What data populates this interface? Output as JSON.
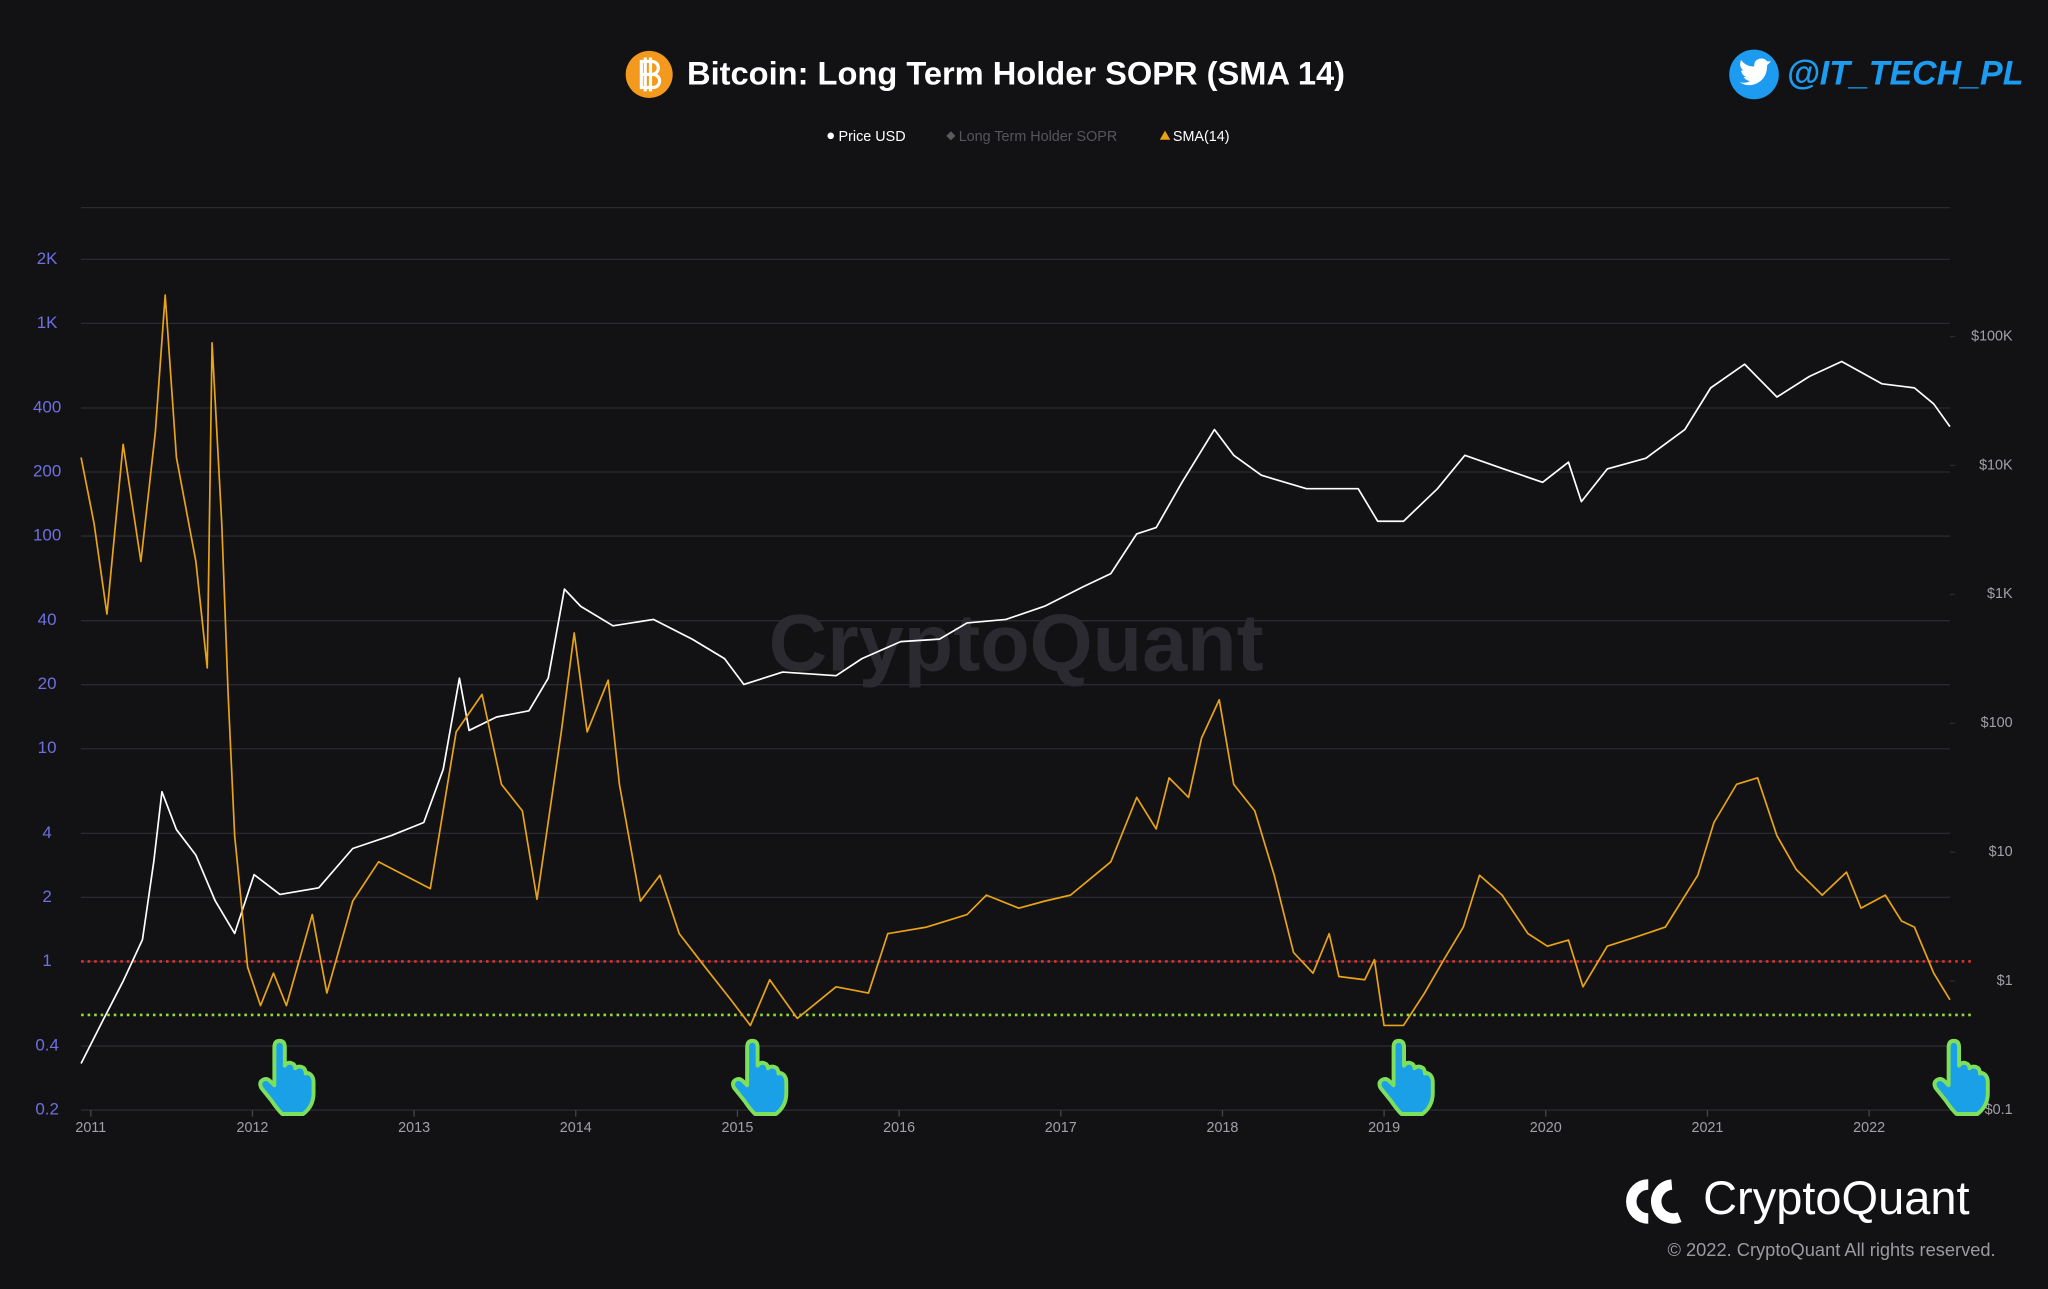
{
  "chart_data": {
    "type": "line",
    "title": "Bitcoin: Long Term Holder SOPR (SMA 14)",
    "handle": "@IT_TECH_PL",
    "watermark": "CryptoQuant",
    "brand": "CryptoQuant",
    "copyright": "© 2022. CryptoQuant All rights reserved.",
    "log_scale": true,
    "grid": true,
    "legend": "top",
    "xlim": [
      2010.94,
      2022.5
    ],
    "xticks": [
      2011,
      2012,
      2013,
      2014,
      2015,
      2016,
      2017,
      2018,
      2019,
      2020,
      2021,
      2022
    ],
    "ylim": [
      0.2,
      3500
    ],
    "yticks": [
      0.2,
      0.4,
      1,
      2,
      4,
      10,
      20,
      40,
      100,
      200,
      400,
      {
        "value": 1000,
        "label": "1K"
      },
      {
        "value": 2000,
        "label": "2K"
      }
    ],
    "y2lim": [
      0.1,
      1000000
    ],
    "y2ticks": [
      {
        "value": 0.1,
        "label": "$0.1"
      },
      {
        "value": 1,
        "label": "$1"
      },
      {
        "value": 10,
        "label": "$10"
      },
      {
        "value": 100,
        "label": "$100"
      },
      {
        "value": 1000,
        "label": "$1K"
      },
      {
        "value": 10000,
        "label": "$10K"
      },
      {
        "value": 100000,
        "label": "$100K"
      }
    ],
    "hlines": [
      {
        "value": 1,
        "color": "#e03030"
      },
      {
        "value": 0.56,
        "color": "#8fdc3a"
      }
    ],
    "series": [
      {
        "name": "Price USD",
        "color": "#ffffff",
        "marker": "circle",
        "axis": "y2",
        "x": [
          2010.94,
          2011.08,
          2011.2,
          2011.32,
          2011.39,
          2011.44,
          2011.53,
          2011.65,
          2011.77,
          2011.89,
          2012.01,
          2012.17,
          2012.41,
          2012.62,
          2012.86,
          2013.06,
          2013.18,
          2013.28,
          2013.34,
          2013.51,
          2013.71,
          2013.83,
          2013.93,
          2014.03,
          2014.23,
          2014.48,
          2014.72,
          2014.92,
          2015.04,
          2015.28,
          2015.61,
          2015.77,
          2016.01,
          2016.25,
          2016.42,
          2016.66,
          2016.9,
          2017.14,
          2017.31,
          2017.47,
          2017.59,
          2017.75,
          2017.95,
          2018.07,
          2018.24,
          2018.52,
          2018.84,
          2018.96,
          2019.12,
          2019.33,
          2019.5,
          2019.74,
          2019.98,
          2020.14,
          2020.22,
          2020.38,
          2020.62,
          2020.86,
          2021.02,
          2021.23,
          2021.43,
          2021.63,
          2021.83,
          2022.08,
          2022.28,
          2022.4,
          2022.5
        ],
        "values": [
          0.23,
          0.51,
          1.0,
          2.1,
          8.5,
          29.5,
          15,
          9.5,
          4.2,
          2.35,
          6.7,
          4.7,
          5.3,
          10.7,
          13.5,
          17,
          44,
          224,
          88,
          112,
          125,
          224,
          1100,
          810,
          570,
          640,
          450,
          318,
          200,
          250,
          234,
          318,
          430,
          450,
          600,
          640,
          810,
          1150,
          1450,
          2950,
          3300,
          7400,
          19000,
          12000,
          8400,
          6600,
          6600,
          3700,
          3700,
          6600,
          12000,
          9400,
          7400,
          10600,
          5250,
          9400,
          11400,
          19000,
          40000,
          61000,
          34000,
          49000,
          64000,
          43000,
          40000,
          30000,
          20000
        ]
      },
      {
        "name": "Long Term Holder SOPR",
        "color": "#5a5a60",
        "marker": "diamond",
        "hidden": true
      },
      {
        "name": "SMA(14)",
        "color": "#e8a317",
        "marker": "triangle",
        "axis": "y",
        "x": [
          2010.94,
          2011.02,
          2011.1,
          2011.2,
          2011.31,
          2011.4,
          2011.46,
          2011.53,
          2011.65,
          2011.72,
          2011.75,
          2011.81,
          2011.85,
          2011.89,
          2011.97,
          2012.05,
          2012.13,
          2012.21,
          2012.37,
          2012.46,
          2012.62,
          2012.78,
          2012.94,
          2013.1,
          2013.26,
          2013.42,
          2013.54,
          2013.67,
          2013.76,
          2013.91,
          2013.99,
          2014.07,
          2014.2,
          2014.27,
          2014.4,
          2014.52,
          2014.64,
          2014.8,
          2014.96,
          2015.08,
          2015.2,
          2015.37,
          2015.61,
          2015.81,
          2015.93,
          2016.17,
          2016.42,
          2016.54,
          2016.74,
          2016.9,
          2017.06,
          2017.31,
          2017.47,
          2017.59,
          2017.67,
          2017.79,
          2017.87,
          2017.98,
          2018.07,
          2018.2,
          2018.32,
          2018.44,
          2018.56,
          2018.66,
          2018.72,
          2018.88,
          2018.94,
          2019.0,
          2019.12,
          2019.25,
          2019.37,
          2019.49,
          2019.59,
          2019.73,
          2019.89,
          2020.01,
          2020.14,
          2020.23,
          2020.38,
          2020.54,
          2020.74,
          2020.94,
          2021.04,
          2021.18,
          2021.31,
          2021.43,
          2021.55,
          2021.71,
          2021.86,
          2021.95,
          2022.1,
          2022.2,
          2022.28,
          2022.4,
          2022.5
        ],
        "values": [
          234,
          115,
          43,
          270,
          76,
          310,
          1360,
          234,
          76,
          24,
          810,
          115,
          18,
          3.9,
          0.94,
          0.62,
          0.88,
          0.62,
          1.66,
          0.71,
          1.92,
          2.94,
          2.54,
          2.2,
          12,
          18,
          6.8,
          5.1,
          1.96,
          12,
          35,
          12,
          21,
          6.8,
          1.92,
          2.54,
          1.35,
          0.94,
          0.66,
          0.5,
          0.82,
          0.54,
          0.76,
          0.71,
          1.35,
          1.45,
          1.66,
          2.05,
          1.78,
          1.92,
          2.05,
          2.94,
          5.9,
          4.2,
          7.3,
          5.9,
          11.2,
          17,
          6.8,
          5.1,
          2.54,
          1.1,
          0.88,
          1.35,
          0.85,
          0.82,
          1.02,
          0.5,
          0.5,
          0.71,
          1.02,
          1.45,
          2.54,
          2.05,
          1.35,
          1.18,
          1.26,
          0.76,
          1.18,
          1.29,
          1.45,
          2.54,
          4.5,
          6.8,
          7.3,
          3.9,
          2.7,
          2.05,
          2.63,
          1.78,
          2.05,
          1.55,
          1.45,
          0.88,
          0.66
        ]
      }
    ]
  }
}
